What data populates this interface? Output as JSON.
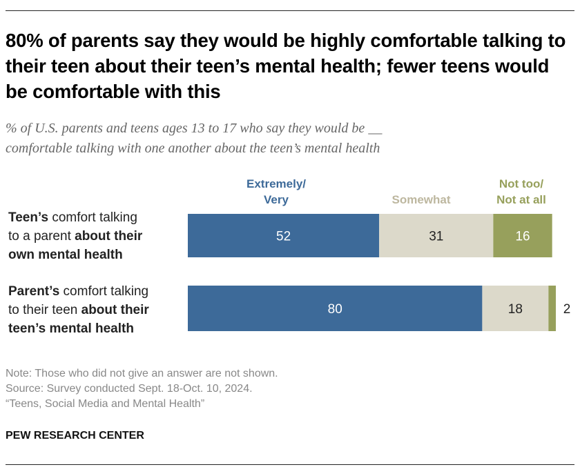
{
  "title": "80% of parents say they would be highly comfortable talking to their teen about their teen’s mental health; fewer teens would be comfortable with this",
  "subtitle_line1": "% of U.S. parents and teens ages 13 to 17 who say they would be __",
  "subtitle_line2": "comfortable talking with one another about the teen’s mental health",
  "chart_data": {
    "type": "bar",
    "orientation": "horizontal",
    "stacked": true,
    "categories": [
      "Teen’s comfort talking to a parent about their own mental health",
      "Parent’s comfort talking to their teen about their teen’s mental health"
    ],
    "category_labels": [
      {
        "bold1": "Teen’s",
        "plain1": " comfort talking",
        "plain2": "to a parent ",
        "bold2": "about their",
        "bold3": "own mental health"
      },
      {
        "bold1": "Parent’s",
        "plain1": " comfort talking",
        "plain2": "to their teen ",
        "bold2": "about their",
        "bold3": "teen’s mental health"
      }
    ],
    "series": [
      {
        "name": "Extremely/ Very",
        "name_line1": "Extremely/",
        "name_line2": "Very",
        "values": [
          52,
          80
        ],
        "color": "#3d6a99",
        "label_color": "#ffffff",
        "legend_color": "#3d6a99"
      },
      {
        "name": "Somewhat",
        "name_line1": "Somewhat",
        "name_line2": "",
        "values": [
          31,
          18
        ],
        "color": "#dcd9ca",
        "label_color": "#222222",
        "legend_color": "#bdb79f"
      },
      {
        "name": "Not too/ Not at all",
        "name_line1": "Not too/",
        "name_line2": "Not at all",
        "values": [
          16,
          2
        ],
        "color": "#97a05c",
        "label_color": "#ffffff",
        "legend_color": "#97a05c"
      }
    ],
    "xlim": [
      0,
      100
    ],
    "grid": false,
    "legend_placement": "top"
  },
  "notes": {
    "note": "Note: Those who did not give an answer are not shown.",
    "source": "Source: Survey conducted Sept. 18-Oct. 10, 2024.",
    "report": "“Teens, Social Media and Mental Health”"
  },
  "brand": "PEW RESEARCH CENTER"
}
